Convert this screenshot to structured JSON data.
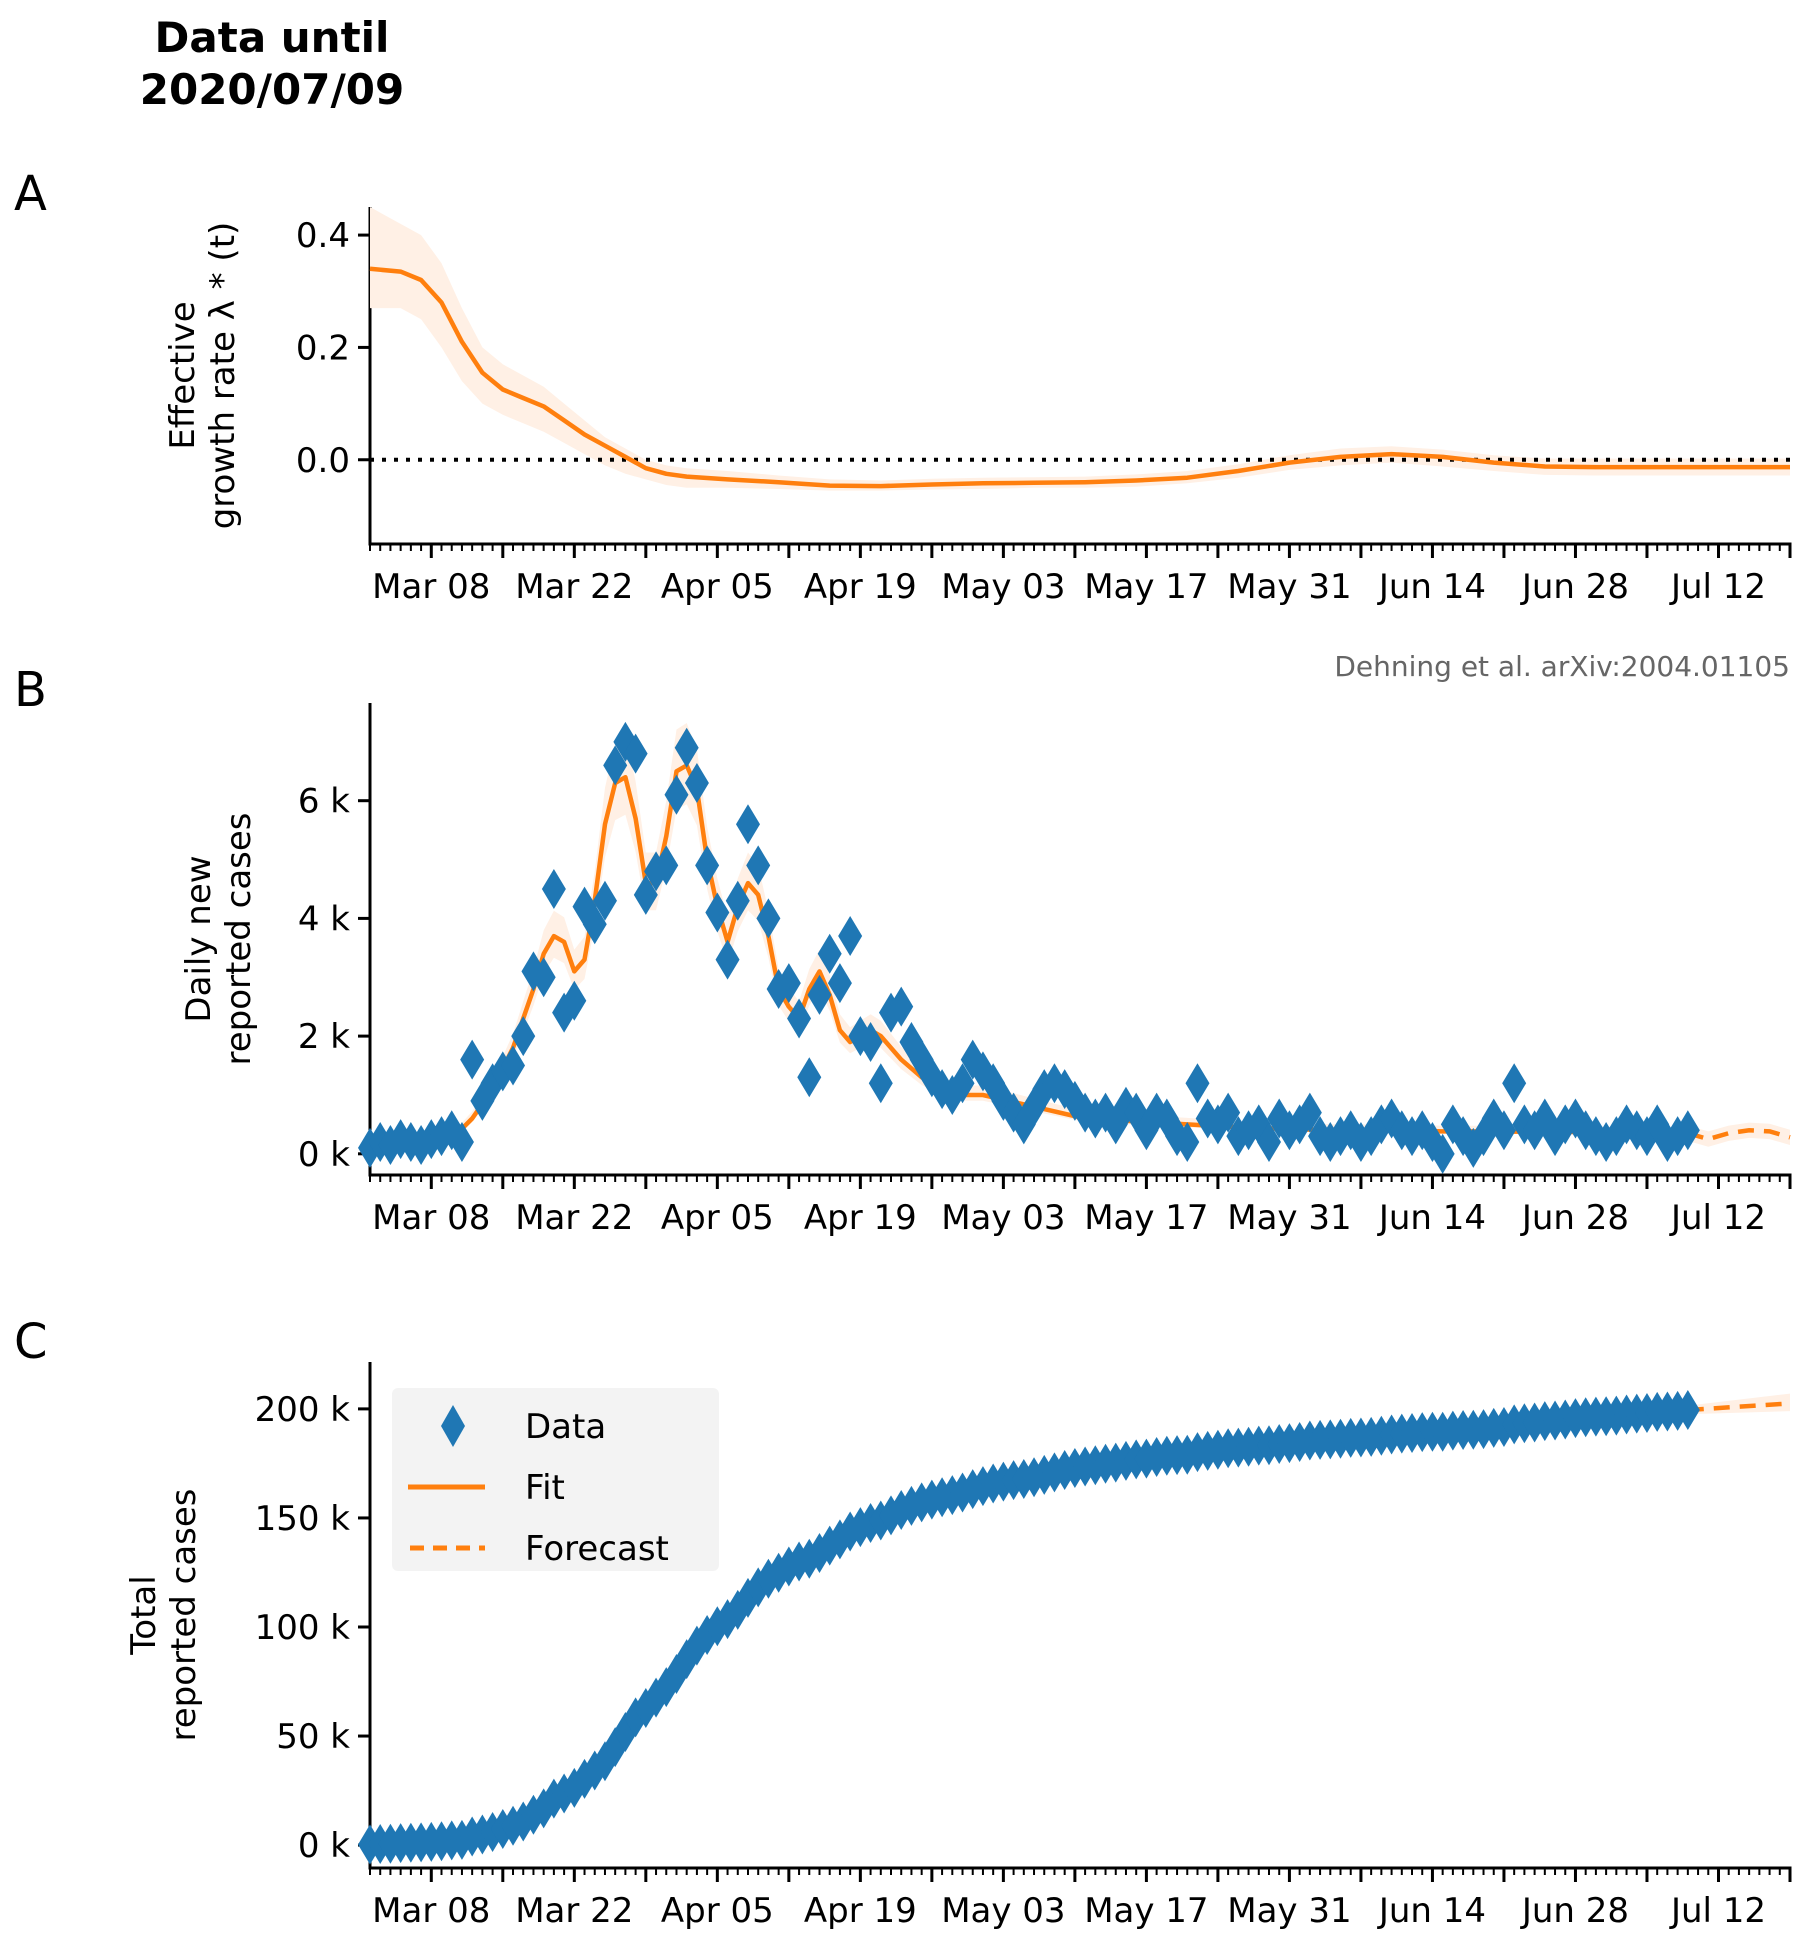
{
  "title_lines": [
    "Data until",
    "2020/07/09"
  ],
  "credit": "Dehning et al. arXiv:2004.01105",
  "colors": {
    "data": "#1f77b4",
    "fit": "#ff7f0e",
    "band": "#fff0e5",
    "legend_bg": "#f2f2f2",
    "credit": "#666666"
  },
  "x_axis": {
    "start_date": "2020-03-02",
    "end_date": "2020-07-19",
    "major_tick_every_days": 7,
    "minor_tick_every_days": 1,
    "tick_labels": [
      "Mar 08",
      "Mar 22",
      "Apr 05",
      "Apr 19",
      "May 03",
      "May 17",
      "May 31",
      "Jun 14",
      "Jun 28",
      "Jul 12"
    ],
    "tick_label_day_offsets": [
      6,
      20,
      34,
      48,
      62,
      76,
      90,
      104,
      118,
      132
    ]
  },
  "chart_data": [
    {
      "panel": "A",
      "type": "line",
      "ylabel_lines": [
        "Effective",
        "growth rate λ * (t)"
      ],
      "ylim": [
        -0.15,
        0.45
      ],
      "yticks": [
        0.0,
        0.2,
        0.4
      ],
      "ytick_labels": [
        "0.0",
        "0.2",
        "0.4"
      ],
      "reference_line": {
        "y": 0.0,
        "style": "dotted"
      },
      "series": [
        {
          "name": "Fit",
          "style": "solid",
          "day_offsets": [
            0,
            3,
            5,
            7,
            9,
            11,
            13,
            15,
            17,
            19,
            21,
            23,
            25,
            27,
            29,
            31,
            35,
            40,
            45,
            50,
            55,
            60,
            65,
            70,
            75,
            80,
            85,
            90,
            95,
            100,
            105,
            110,
            115,
            120,
            125,
            130,
            135,
            139
          ],
          "values": [
            0.34,
            0.335,
            0.32,
            0.28,
            0.21,
            0.155,
            0.125,
            0.11,
            0.095,
            0.07,
            0.045,
            0.025,
            0.005,
            -0.015,
            -0.025,
            -0.03,
            -0.035,
            -0.04,
            -0.046,
            -0.047,
            -0.044,
            -0.042,
            -0.041,
            -0.04,
            -0.037,
            -0.032,
            -0.02,
            -0.005,
            0.005,
            0.01,
            0.005,
            -0.005,
            -0.012,
            -0.013,
            -0.013,
            -0.013,
            -0.013,
            -0.013
          ],
          "band_lower": [
            0.27,
            0.27,
            0.25,
            0.2,
            0.14,
            0.1,
            0.08,
            0.065,
            0.05,
            0.03,
            0.01,
            -0.01,
            -0.025,
            -0.035,
            -0.045,
            -0.05,
            -0.05,
            -0.052,
            -0.055,
            -0.055,
            -0.053,
            -0.052,
            -0.05,
            -0.05,
            -0.048,
            -0.042,
            -0.032,
            -0.018,
            -0.01,
            -0.005,
            -0.012,
            -0.02,
            -0.027,
            -0.028,
            -0.028,
            -0.028,
            -0.028,
            -0.028
          ],
          "band_upper": [
            0.45,
            0.42,
            0.4,
            0.35,
            0.27,
            0.2,
            0.17,
            0.15,
            0.13,
            0.1,
            0.07,
            0.04,
            0.02,
            0.0,
            -0.01,
            -0.015,
            -0.02,
            -0.028,
            -0.035,
            -0.037,
            -0.034,
            -0.032,
            -0.031,
            -0.03,
            -0.026,
            -0.02,
            -0.008,
            0.008,
            0.02,
            0.024,
            0.018,
            0.008,
            0.002,
            0.002,
            0.002,
            0.002,
            0.002,
            0.002
          ]
        }
      ]
    },
    {
      "panel": "B",
      "type": "scatter",
      "ylabel_lines": [
        "Daily new",
        "reported cases"
      ],
      "ylim": [
        -360,
        7660
      ],
      "yticks": [
        0,
        2000,
        4000,
        6000
      ],
      "ytick_labels": [
        "0 k",
        "2 k",
        "4 k",
        "6 k"
      ],
      "series": [
        {
          "name": "Data",
          "marker": "diamond",
          "start_day_offset": 0,
          "values": [
            100,
            200,
            150,
            250,
            200,
            150,
            250,
            300,
            400,
            200,
            1600,
            900,
            1200,
            1400,
            1500,
            2000,
            3100,
            3000,
            4500,
            2400,
            2600,
            4200,
            3900,
            4300,
            6600,
            7000,
            6800,
            4400,
            4800,
            4900,
            6100,
            6900,
            6300,
            4900,
            4100,
            3300,
            4300,
            5600,
            4900,
            4000,
            2800,
            2900,
            2300,
            1300,
            2700,
            3400,
            2900,
            3700,
            2000,
            1900,
            1200,
            2400,
            2500,
            1900,
            1600,
            1300,
            1100,
            1000,
            1200,
            1600,
            1400,
            1200,
            900,
            700,
            500,
            800,
            1100,
            1200,
            1100,
            900,
            700,
            600,
            700,
            500,
            800,
            700,
            400,
            700,
            600,
            300,
            200,
            1200,
            600,
            500,
            700,
            300,
            400,
            500,
            200,
            600,
            400,
            500,
            700,
            300,
            200,
            300,
            400,
            200,
            300,
            500,
            600,
            400,
            300,
            400,
            200,
            0,
            500,
            300,
            100,
            300,
            600,
            400,
            1200,
            500,
            400,
            600,
            300,
            500,
            600,
            400,
            300,
            200,
            300,
            500,
            400,
            300,
            500,
            200,
            300,
            400
          ]
        },
        {
          "name": "Fit",
          "style": "solid",
          "day_offsets": [
            0,
            4,
            8,
            10,
            12,
            14,
            16,
            17,
            18,
            19,
            20,
            21,
            22,
            23,
            24,
            25,
            26,
            27,
            28,
            29,
            30,
            31,
            32,
            33,
            34,
            35,
            36,
            37,
            38,
            39,
            40,
            41,
            42,
            43,
            44,
            45,
            46,
            47,
            48,
            49,
            50,
            52,
            54,
            56,
            58,
            60,
            65,
            70,
            75,
            80,
            85,
            90,
            95,
            100,
            105,
            110,
            115,
            120,
            125,
            129
          ],
          "values": [
            100,
            150,
            250,
            600,
            1100,
            1800,
            2800,
            3400,
            3700,
            3600,
            3100,
            3300,
            4300,
            5600,
            6300,
            6400,
            5700,
            4600,
            4600,
            5400,
            6500,
            6600,
            6200,
            5000,
            4200,
            3600,
            4200,
            4600,
            4400,
            3700,
            2800,
            2500,
            2300,
            2800,
            3100,
            2700,
            2100,
            1900,
            2000,
            2100,
            2000,
            1600,
            1300,
            1100,
            1000,
            1000,
            800,
            600,
            550,
            500,
            450,
            420,
            400,
            400,
            380,
            380,
            370,
            370,
            360,
            350
          ]
        },
        {
          "name": "Forecast",
          "style": "dashed",
          "day_offsets": [
            129,
            131,
            133,
            135,
            137,
            139
          ],
          "values": [
            350,
            250,
            350,
            400,
            380,
            280
          ]
        }
      ]
    },
    {
      "panel": "C",
      "type": "scatter",
      "ylabel_lines": [
        "Total",
        "reported cases"
      ],
      "ylim": [
        -10500,
        221500
      ],
      "yticks": [
        0,
        50000,
        100000,
        150000,
        200000
      ],
      "ytick_labels": [
        "0 k",
        "50 k",
        "100 k",
        "150 k",
        "200 k"
      ],
      "legend": {
        "position": "upper-left",
        "entries": [
          {
            "label": "Data",
            "kind": "marker"
          },
          {
            "label": "Fit",
            "kind": "solid"
          },
          {
            "label": "Forecast",
            "kind": "dashed"
          }
        ]
      },
      "series": [
        {
          "name": "Data",
          "marker": "diamond",
          "note": "cumulative sum of panel B daily values, offset by initial total",
          "initial_total": 200
        },
        {
          "name": "Forecast",
          "style": "dashed",
          "day_offsets": [
            129,
            139
          ],
          "values": [
            199500,
            202500
          ],
          "band_lower": [
            197500,
            199000
          ],
          "band_upper": [
            201500,
            207000
          ]
        }
      ]
    }
  ]
}
